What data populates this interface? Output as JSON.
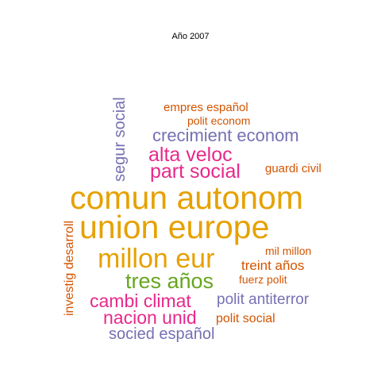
{
  "title": "Año 2007",
  "colors": {
    "orange": "#d95f02",
    "gold": "#e6a100",
    "purple": "#7570b3",
    "magenta": "#e7298a",
    "green": "#66a61e",
    "dark_orange": "#d35400"
  },
  "words": {
    "empres_espanol": "empres español",
    "polit_econom": "polit econom",
    "segur_social": "segur social",
    "crecimient_econom": "crecimient econom",
    "alta_veloc": "alta veloc",
    "part_social": "part social",
    "guardi_civil": "guardi civil",
    "comun_autonom": "comun autonom",
    "union_europe": "union europe",
    "investig_desarroll": "investig desarroll",
    "mil_millon": "mil millon",
    "millon_eur": "millon eur",
    "treint_anos": "treint años",
    "fuerz_polit": "fuerz polit",
    "tres_anos": "tres años",
    "cambi_climat": "cambi climat",
    "polit_antiterror": "polit antiterror",
    "nacion_unid": "nacion unid",
    "polit_social": "polit social",
    "socied_espanol": "socied español"
  }
}
